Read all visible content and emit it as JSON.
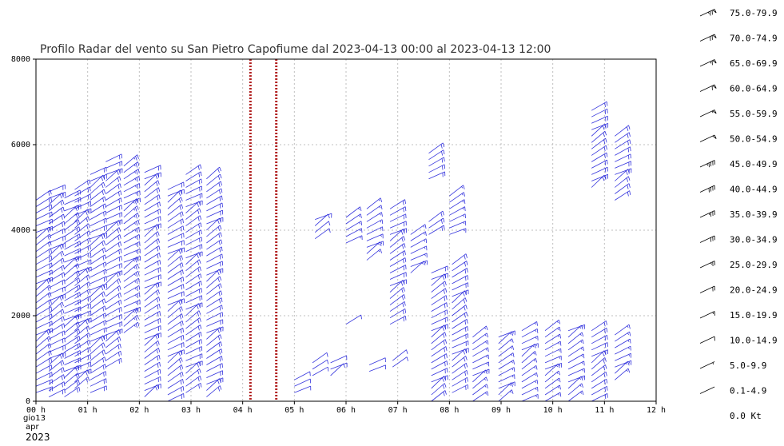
{
  "chart_data": {
    "type": "wind-barb-profile",
    "title": "Profilo Radar del vento su San Pietro Capofiume dal 2023-04-13 00:00 al 2023-04-13 12:00",
    "xlabel": "",
    "ylabel": "",
    "xlim": [
      0,
      12
    ],
    "ylim": [
      0,
      8000
    ],
    "y_ticks": [
      "0",
      "2000",
      "4000",
      "6000",
      "8000"
    ],
    "x_ticks": [
      "00 h",
      "01 h",
      "02 h",
      "03 h",
      "04 h",
      "05 h",
      "06 h",
      "07 h",
      "08 h",
      "09 h",
      "10 h",
      "11 h",
      "12 h"
    ],
    "x_date_label": [
      "gio13",
      "apr"
    ],
    "x_year_label": "2023",
    "grid": true,
    "missing_markers": [
      4.15,
      4.65
    ],
    "barb_color": "#3333dd",
    "marker_color": "#b22222",
    "profiles": [
      {
        "t": 0.0,
        "bottom": 200,
        "top": 4800,
        "speed": 18
      },
      {
        "t": 0.25,
        "bottom": 100,
        "top": 4900,
        "speed": 18
      },
      {
        "t": 0.55,
        "bottom": 100,
        "top": 4800,
        "speed": 20
      },
      {
        "t": 0.75,
        "bottom": 300,
        "top": 5000,
        "speed": 20
      },
      {
        "t": 1.05,
        "bottom": 200,
        "top": 5300,
        "speed": 22
      },
      {
        "t": 1.35,
        "bottom": 800,
        "top": 5600,
        "speed": 22
      },
      {
        "t": 1.7,
        "bottom": 1600,
        "top": 5500,
        "speed": 24
      },
      {
        "t": 2.1,
        "bottom": 100,
        "top": 5400,
        "speed": 22
      },
      {
        "t": 2.55,
        "bottom": 0,
        "top": 5000,
        "speed": 22
      },
      {
        "t": 2.9,
        "bottom": 200,
        "top": 5300,
        "speed": 20
      },
      {
        "t": 3.3,
        "bottom": 100,
        "top": 5200,
        "speed": 18
      },
      {
        "t": 5.0,
        "bottom": 200,
        "top": 600,
        "speed": 8
      },
      {
        "t": 5.35,
        "bottom": 600,
        "top": 900,
        "speed": 10
      },
      {
        "t": 5.4,
        "bottom": 3800,
        "top": 4300,
        "speed": 12
      },
      {
        "t": 5.7,
        "bottom": 600,
        "top": 900,
        "speed": 8
      },
      {
        "t": 6.0,
        "bottom": 3700,
        "top": 4400,
        "speed": 14
      },
      {
        "t": 6.0,
        "bottom": 1800,
        "top": 1900,
        "speed": 10
      },
      {
        "t": 6.4,
        "bottom": 3300,
        "top": 4500,
        "speed": 16
      },
      {
        "t": 6.45,
        "bottom": 700,
        "top": 900,
        "speed": 10
      },
      {
        "t": 6.85,
        "bottom": 1800,
        "top": 4600,
        "speed": 18
      },
      {
        "t": 6.9,
        "bottom": 800,
        "top": 1000,
        "speed": 10
      },
      {
        "t": 7.25,
        "bottom": 3000,
        "top": 4000,
        "speed": 16
      },
      {
        "t": 7.6,
        "bottom": 5200,
        "top": 5800,
        "speed": 18
      },
      {
        "t": 7.6,
        "bottom": 3900,
        "top": 4300,
        "speed": 18
      },
      {
        "t": 7.65,
        "bottom": 0,
        "top": 3000,
        "speed": 18
      },
      {
        "t": 8.0,
        "bottom": 3900,
        "top": 4900,
        "speed": 16
      },
      {
        "t": 8.05,
        "bottom": 200,
        "top": 3300,
        "speed": 20
      },
      {
        "t": 8.45,
        "bottom": 0,
        "top": 1500,
        "speed": 14
      },
      {
        "t": 8.95,
        "bottom": 0,
        "top": 1600,
        "speed": 14
      },
      {
        "t": 9.4,
        "bottom": 0,
        "top": 1700,
        "speed": 16
      },
      {
        "t": 9.85,
        "bottom": 0,
        "top": 1700,
        "speed": 16
      },
      {
        "t": 10.3,
        "bottom": 0,
        "top": 1700,
        "speed": 16
      },
      {
        "t": 10.75,
        "bottom": 5000,
        "top": 6800,
        "speed": 20
      },
      {
        "t": 10.75,
        "bottom": 0,
        "top": 1700,
        "speed": 18
      },
      {
        "t": 11.2,
        "bottom": 4700,
        "top": 6300,
        "speed": 20
      },
      {
        "t": 11.2,
        "bottom": 500,
        "top": 1600,
        "speed": 16
      }
    ]
  },
  "legend": {
    "entries": [
      {
        "label": "75.0-79.9",
        "speed": 77
      },
      {
        "label": "70.0-74.9",
        "speed": 72
      },
      {
        "label": "65.0-69.9",
        "speed": 67
      },
      {
        "label": "60.0-64.9",
        "speed": 62
      },
      {
        "label": "55.0-59.9",
        "speed": 57
      },
      {
        "label": "50.0-54.9",
        "speed": 52
      },
      {
        "label": "45.0-49.9",
        "speed": 47
      },
      {
        "label": "40.0-44.9",
        "speed": 42
      },
      {
        "label": "35.0-39.9",
        "speed": 37
      },
      {
        "label": "30.0-34.9",
        "speed": 32
      },
      {
        "label": "25.0-29.9",
        "speed": 27
      },
      {
        "label": "20.0-24.9",
        "speed": 22
      },
      {
        "label": "15.0-19.9",
        "speed": 17
      },
      {
        "label": "10.0-14.9",
        "speed": 12
      },
      {
        "label": "5.0-9.9",
        "speed": 7
      },
      {
        "label": "0.1-4.9",
        "speed": 2
      },
      {
        "label": "0.0 Kt",
        "speed": 0
      }
    ]
  }
}
